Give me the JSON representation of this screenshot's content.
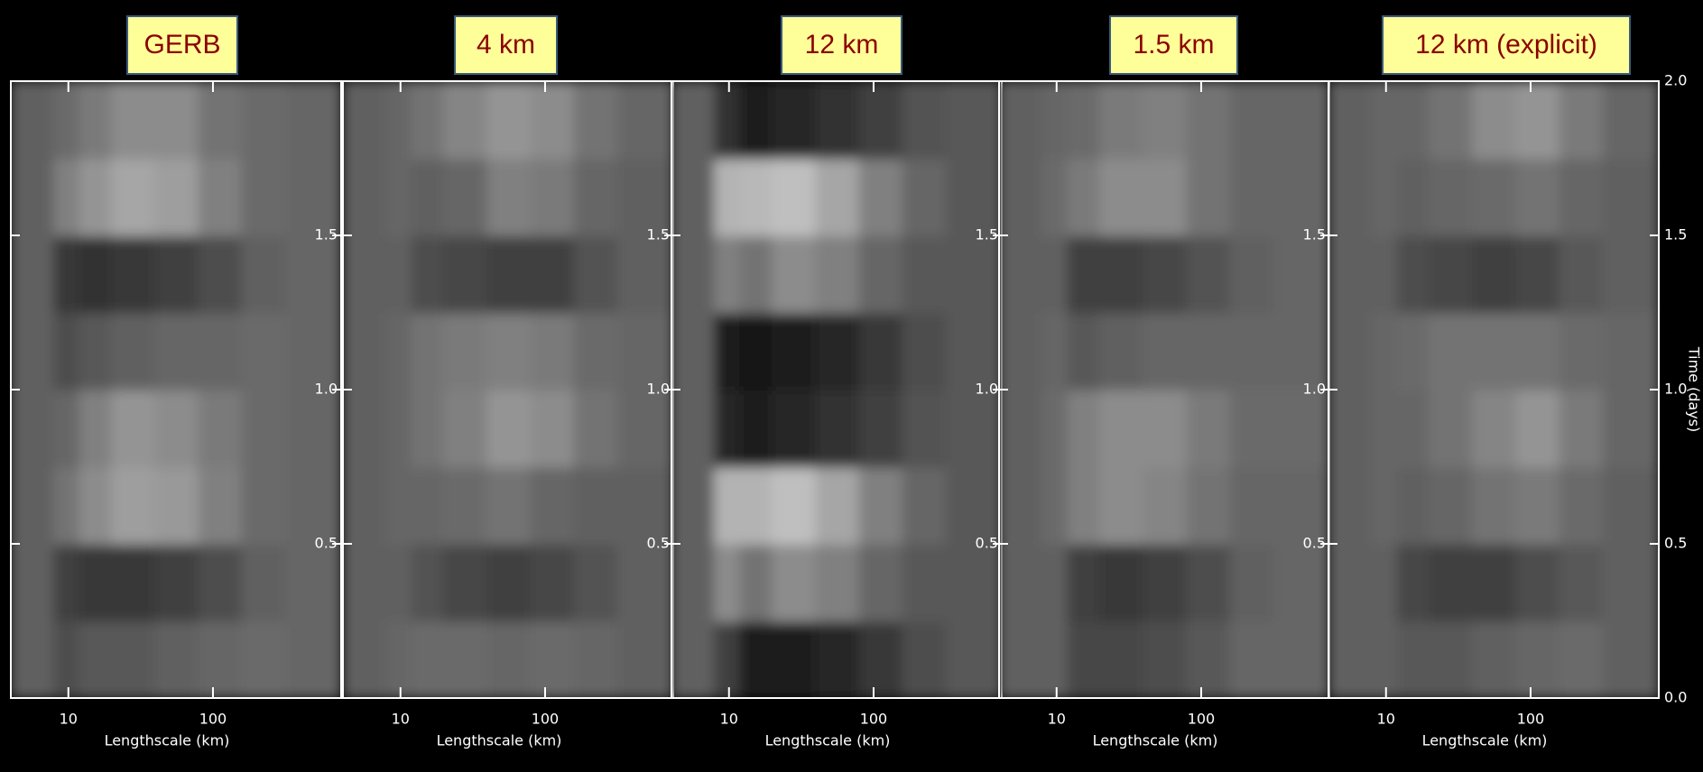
{
  "chart_data": [
    {
      "type": "heatmap",
      "title": "GERB",
      "x_label": "Lengthscale (km)",
      "x_log": true,
      "xlim": [
        4,
        770
      ],
      "ylim": [
        0,
        2
      ],
      "xticks": [
        10,
        100
      ],
      "yticks": [
        {
          "value": 0.5,
          "label": "0.5"
        },
        {
          "value": 1.0,
          "label": "1.0"
        },
        {
          "value": 1.5,
          "label": "1.5"
        }
      ],
      "xbins": [
        4,
        8,
        12,
        20,
        40,
        80,
        160,
        320,
        770
      ],
      "ybins": [
        0,
        0.25,
        0.5,
        0.75,
        1.0,
        1.25,
        1.5,
        1.75,
        2.0
      ],
      "z": [
        [
          0.38,
          0.3,
          0.35,
          0.35,
          0.38,
          0.4,
          0.42,
          0.4
        ],
        [
          0.38,
          0.25,
          0.22,
          0.22,
          0.25,
          0.3,
          0.38,
          0.4
        ],
        [
          0.38,
          0.45,
          0.55,
          0.62,
          0.6,
          0.5,
          0.42,
          0.4
        ],
        [
          0.38,
          0.4,
          0.5,
          0.58,
          0.55,
          0.48,
          0.42,
          0.4
        ],
        [
          0.38,
          0.3,
          0.35,
          0.38,
          0.4,
          0.4,
          0.42,
          0.4
        ],
        [
          0.38,
          0.22,
          0.2,
          0.22,
          0.25,
          0.3,
          0.38,
          0.4
        ],
        [
          0.38,
          0.5,
          0.58,
          0.65,
          0.62,
          0.5,
          0.42,
          0.4
        ],
        [
          0.38,
          0.42,
          0.48,
          0.55,
          0.55,
          0.45,
          0.42,
          0.4
        ]
      ]
    },
    {
      "type": "heatmap",
      "title": "4 km",
      "x_label": "Lengthscale (km)",
      "x_log": true,
      "xlim": [
        4,
        770
      ],
      "ylim": [
        0,
        2
      ],
      "xticks": [
        10,
        100
      ],
      "yticks": [
        {
          "value": 0.5,
          "label": "0.5"
        },
        {
          "value": 1.0,
          "label": "1.0"
        },
        {
          "value": 1.5,
          "label": "1.5"
        }
      ],
      "xbins": [
        4,
        8,
        12,
        20,
        40,
        80,
        160,
        320,
        770
      ],
      "ybins": [
        0,
        0.25,
        0.5,
        0.75,
        1.0,
        1.25,
        1.5,
        1.75,
        2.0
      ],
      "z": [
        [
          0.38,
          0.4,
          0.42,
          0.42,
          0.4,
          0.42,
          0.4,
          0.38
        ],
        [
          0.38,
          0.38,
          0.32,
          0.28,
          0.25,
          0.28,
          0.32,
          0.38
        ],
        [
          0.38,
          0.4,
          0.4,
          0.42,
          0.45,
          0.4,
          0.38,
          0.38
        ],
        [
          0.38,
          0.4,
          0.45,
          0.5,
          0.58,
          0.55,
          0.45,
          0.4
        ],
        [
          0.38,
          0.4,
          0.45,
          0.48,
          0.5,
          0.48,
          0.42,
          0.4
        ],
        [
          0.38,
          0.38,
          0.3,
          0.28,
          0.25,
          0.25,
          0.32,
          0.38
        ],
        [
          0.38,
          0.4,
          0.38,
          0.4,
          0.5,
          0.48,
          0.4,
          0.38
        ],
        [
          0.38,
          0.4,
          0.45,
          0.52,
          0.58,
          0.55,
          0.45,
          0.4
        ]
      ]
    },
    {
      "type": "heatmap",
      "title": "12 km",
      "x_label": "Lengthscale (km)",
      "x_log": true,
      "xlim": [
        4,
        770
      ],
      "ylim": [
        0,
        2
      ],
      "xticks": [
        10,
        100
      ],
      "yticks": [
        {
          "value": 0.5,
          "label": "0.5"
        },
        {
          "value": 1.0,
          "label": "1.0"
        },
        {
          "value": 1.5,
          "label": "1.5"
        }
      ],
      "xbins": [
        4,
        8,
        12,
        20,
        40,
        80,
        160,
        320,
        770
      ],
      "ybins": [
        0,
        0.25,
        0.5,
        0.75,
        1.0,
        1.25,
        1.5,
        1.75,
        2.0
      ],
      "z": [
        [
          0.38,
          0.25,
          0.1,
          0.12,
          0.15,
          0.22,
          0.3,
          0.35
        ],
        [
          0.38,
          0.55,
          0.45,
          0.55,
          0.5,
          0.4,
          0.35,
          0.35
        ],
        [
          0.38,
          0.7,
          0.7,
          0.75,
          0.65,
          0.5,
          0.4,
          0.35
        ],
        [
          0.38,
          0.15,
          0.1,
          0.15,
          0.2,
          0.25,
          0.32,
          0.35
        ],
        [
          0.38,
          0.1,
          0.08,
          0.1,
          0.15,
          0.22,
          0.3,
          0.35
        ],
        [
          0.38,
          0.5,
          0.45,
          0.55,
          0.5,
          0.4,
          0.35,
          0.35
        ],
        [
          0.38,
          0.7,
          0.72,
          0.75,
          0.65,
          0.5,
          0.4,
          0.35
        ],
        [
          0.38,
          0.2,
          0.12,
          0.15,
          0.2,
          0.25,
          0.32,
          0.35
        ]
      ]
    },
    {
      "type": "heatmap",
      "title": "1.5 km",
      "x_label": "Lengthscale (km)",
      "x_log": true,
      "xlim": [
        4,
        770
      ],
      "ylim": [
        0,
        2
      ],
      "xticks": [
        10,
        100
      ],
      "yticks": [
        {
          "value": 0.5,
          "label": "0.5"
        },
        {
          "value": 1.0,
          "label": "1.0"
        },
        {
          "value": 1.5,
          "label": "1.5"
        }
      ],
      "xbins": [
        4,
        8,
        12,
        20,
        40,
        80,
        160,
        320,
        770
      ],
      "ybins": [
        0,
        0.25,
        0.5,
        0.75,
        1.0,
        1.25,
        1.5,
        1.75,
        2.0
      ],
      "z": [
        [
          0.38,
          0.38,
          0.28,
          0.28,
          0.3,
          0.35,
          0.4,
          0.4
        ],
        [
          0.38,
          0.38,
          0.25,
          0.22,
          0.25,
          0.3,
          0.38,
          0.4
        ],
        [
          0.38,
          0.42,
          0.5,
          0.55,
          0.52,
          0.45,
          0.4,
          0.4
        ],
        [
          0.38,
          0.42,
          0.5,
          0.55,
          0.55,
          0.48,
          0.42,
          0.42
        ],
        [
          0.38,
          0.4,
          0.35,
          0.38,
          0.4,
          0.4,
          0.4,
          0.4
        ],
        [
          0.38,
          0.38,
          0.25,
          0.25,
          0.28,
          0.32,
          0.38,
          0.4
        ],
        [
          0.38,
          0.42,
          0.48,
          0.55,
          0.55,
          0.45,
          0.4,
          0.4
        ],
        [
          0.38,
          0.4,
          0.42,
          0.48,
          0.5,
          0.45,
          0.4,
          0.4
        ]
      ]
    },
    {
      "type": "heatmap",
      "title": "12 km (explicit)",
      "x_label": "Lengthscale (km)",
      "y_label": "Time (days)",
      "x_log": true,
      "xlim": [
        4,
        770
      ],
      "ylim": [
        0,
        2
      ],
      "xticks": [
        10,
        100
      ],
      "yticks": [
        {
          "value": 0.0,
          "label": "0.0"
        },
        {
          "value": 0.5,
          "label": "0.5"
        },
        {
          "value": 1.0,
          "label": "1.0"
        },
        {
          "value": 1.5,
          "label": "1.5"
        },
        {
          "value": 2.0,
          "label": "2.0"
        }
      ],
      "xbins": [
        4,
        8,
        12,
        20,
        40,
        80,
        160,
        320,
        770
      ],
      "ybins": [
        0,
        0.25,
        0.5,
        0.75,
        1.0,
        1.25,
        1.5,
        1.75,
        2.0
      ],
      "z": [
        [
          0.38,
          0.38,
          0.35,
          0.35,
          0.38,
          0.4,
          0.42,
          0.38
        ],
        [
          0.38,
          0.38,
          0.28,
          0.25,
          0.25,
          0.3,
          0.35,
          0.38
        ],
        [
          0.38,
          0.4,
          0.38,
          0.4,
          0.45,
          0.48,
          0.42,
          0.38
        ],
        [
          0.38,
          0.4,
          0.4,
          0.45,
          0.52,
          0.58,
          0.48,
          0.4
        ],
        [
          0.38,
          0.4,
          0.42,
          0.45,
          0.45,
          0.45,
          0.42,
          0.4
        ],
        [
          0.38,
          0.38,
          0.3,
          0.28,
          0.25,
          0.28,
          0.35,
          0.38
        ],
        [
          0.38,
          0.4,
          0.38,
          0.4,
          0.42,
          0.45,
          0.4,
          0.38
        ],
        [
          0.38,
          0.4,
          0.4,
          0.45,
          0.55,
          0.58,
          0.48,
          0.4
        ]
      ]
    }
  ]
}
